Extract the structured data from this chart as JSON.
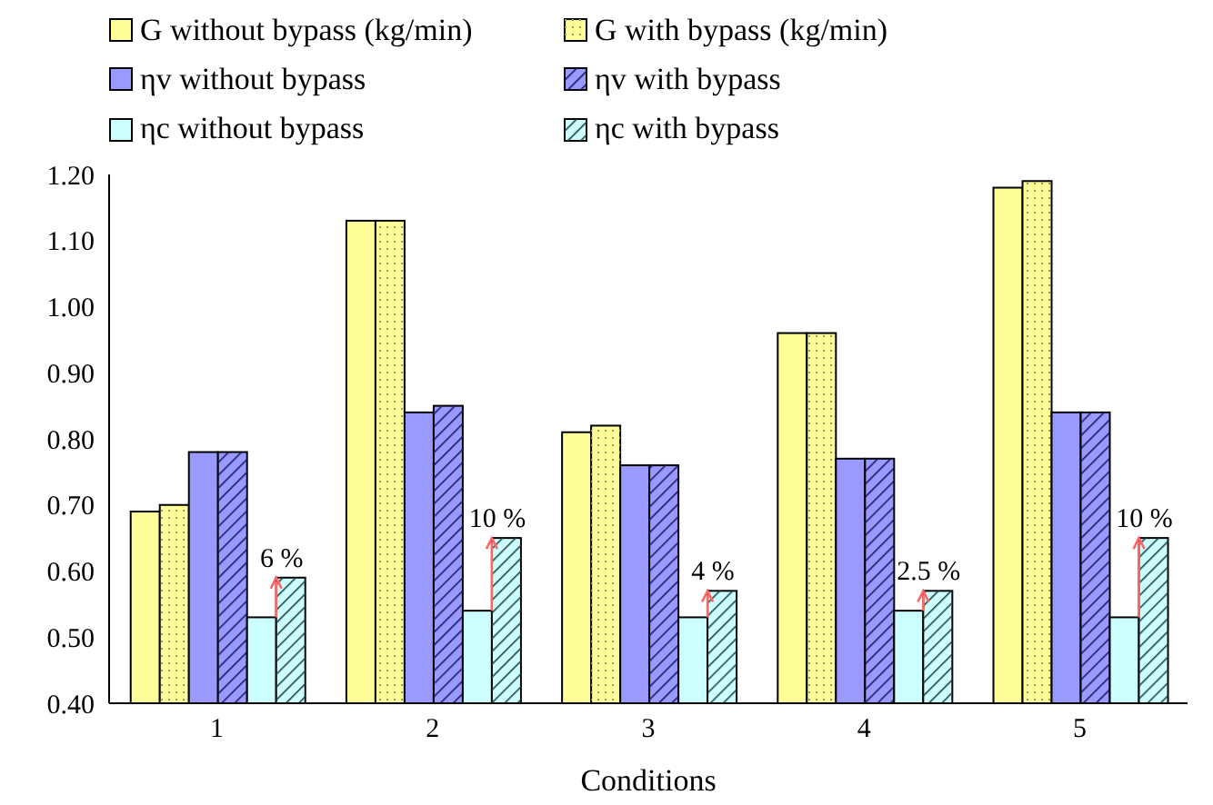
{
  "chart_data": {
    "type": "bar",
    "xlabel": "Conditions",
    "categories": [
      "1",
      "2",
      "3",
      "4",
      "5"
    ],
    "series": [
      {
        "name": "G without bypass (kg/min)",
        "color": "#ffff99",
        "values": [
          0.69,
          1.13,
          0.81,
          0.96,
          1.18
        ]
      },
      {
        "name": "G with bypass (kg/min)",
        "color": "#ffff99",
        "values": [
          0.7,
          1.13,
          0.82,
          0.96,
          1.19
        ]
      },
      {
        "name": "ηv without bypass",
        "color": "#9999ff",
        "values": [
          0.78,
          0.84,
          0.76,
          0.77,
          0.84
        ]
      },
      {
        "name": "ηv with bypass",
        "color": "#9999ff",
        "values": [
          0.78,
          0.85,
          0.76,
          0.77,
          0.84
        ]
      },
      {
        "name": "ηc without bypass",
        "color": "#ccffff",
        "values": [
          0.53,
          0.54,
          0.53,
          0.54,
          0.53
        ]
      },
      {
        "name": "ηc with bypass",
        "color": "#ccffff",
        "values": [
          0.59,
          0.65,
          0.57,
          0.57,
          0.65
        ]
      }
    ],
    "ylim": [
      0.4,
      1.2
    ],
    "yticks": [
      {
        "value": 0.4,
        "label": "0.40"
      },
      {
        "value": 0.5,
        "label": "0.50"
      },
      {
        "value": 0.6,
        "label": "0.60"
      },
      {
        "value": 0.7,
        "label": "0.70"
      },
      {
        "value": 0.8,
        "label": "0.80"
      },
      {
        "value": 0.9,
        "label": "0.90"
      },
      {
        "value": 1,
        "label": "1.00"
      },
      {
        "value": 1.1,
        "label": "1.10"
      },
      {
        "value": 1.2,
        "label": "1.20"
      }
    ],
    "annotations": [
      {
        "text": "6 %",
        "x": "1",
        "y": 0.59
      },
      {
        "text": "10 %",
        "x": "2",
        "y": 0.65
      },
      {
        "text": "4 %",
        "x": "3",
        "y": 0.57
      },
      {
        "text": "2.5 %",
        "x": "4",
        "y": 0.57
      },
      {
        "text": "10 %",
        "x": "5",
        "y": 0.65
      }
    ],
    "grid": false,
    "legend": "top"
  }
}
